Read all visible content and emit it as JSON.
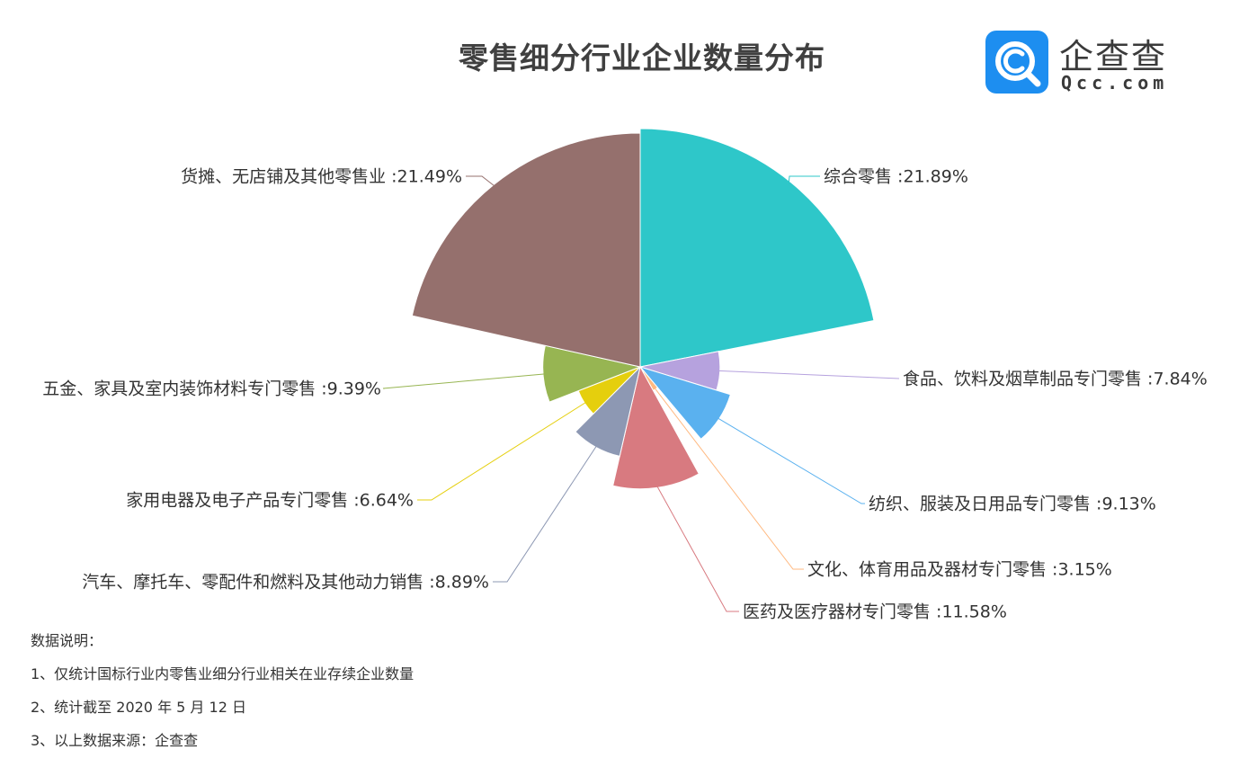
{
  "title": "零售细分行业企业数量分布",
  "logo": {
    "name": "企查查",
    "domain": "Qcc.com",
    "icon": "qcc-magnifier-icon",
    "color": "#1d8ef0"
  },
  "chart_data": {
    "type": "pie",
    "variant": "nightingale-rose",
    "title": "零售细分行业企业数量分布",
    "label_separator": " :",
    "unit": "%",
    "slices": [
      {
        "label": "综合零售",
        "value": 21.89,
        "color": "#2ec7c9"
      },
      {
        "label": "食品、饮料及烟草制品专门零售",
        "value": 7.84,
        "color": "#b6a2de"
      },
      {
        "label": "纺织、服装及日用品专门零售",
        "value": 9.13,
        "color": "#5ab1ef"
      },
      {
        "label": "文化、体育用品及器材专门零售",
        "value": 3.15,
        "color": "#ffb980"
      },
      {
        "label": "医药及医疗器材专门零售",
        "value": 11.58,
        "color": "#d87a80"
      },
      {
        "label": "汽车、摩托车、零配件和燃料及其他动力销售",
        "value": 8.89,
        "color": "#8d98b3"
      },
      {
        "label": "家用电器及电子产品专门零售",
        "value": 6.64,
        "color": "#e5cf0d"
      },
      {
        "label": "五金、家具及室内装饰材料专门零售",
        "value": 9.39,
        "color": "#97b552"
      },
      {
        "label": "货摊、无店铺及其他零售业",
        "value": 21.49,
        "color": "#95706d"
      }
    ]
  },
  "notes": {
    "heading": "数据说明：",
    "items": [
      "1、仅统计国标行业内零售业细分行业相关在业存续企业数量",
      "2、统计截至 2020 年 5 月 12 日",
      "3、以上数据来源：企查查"
    ]
  }
}
